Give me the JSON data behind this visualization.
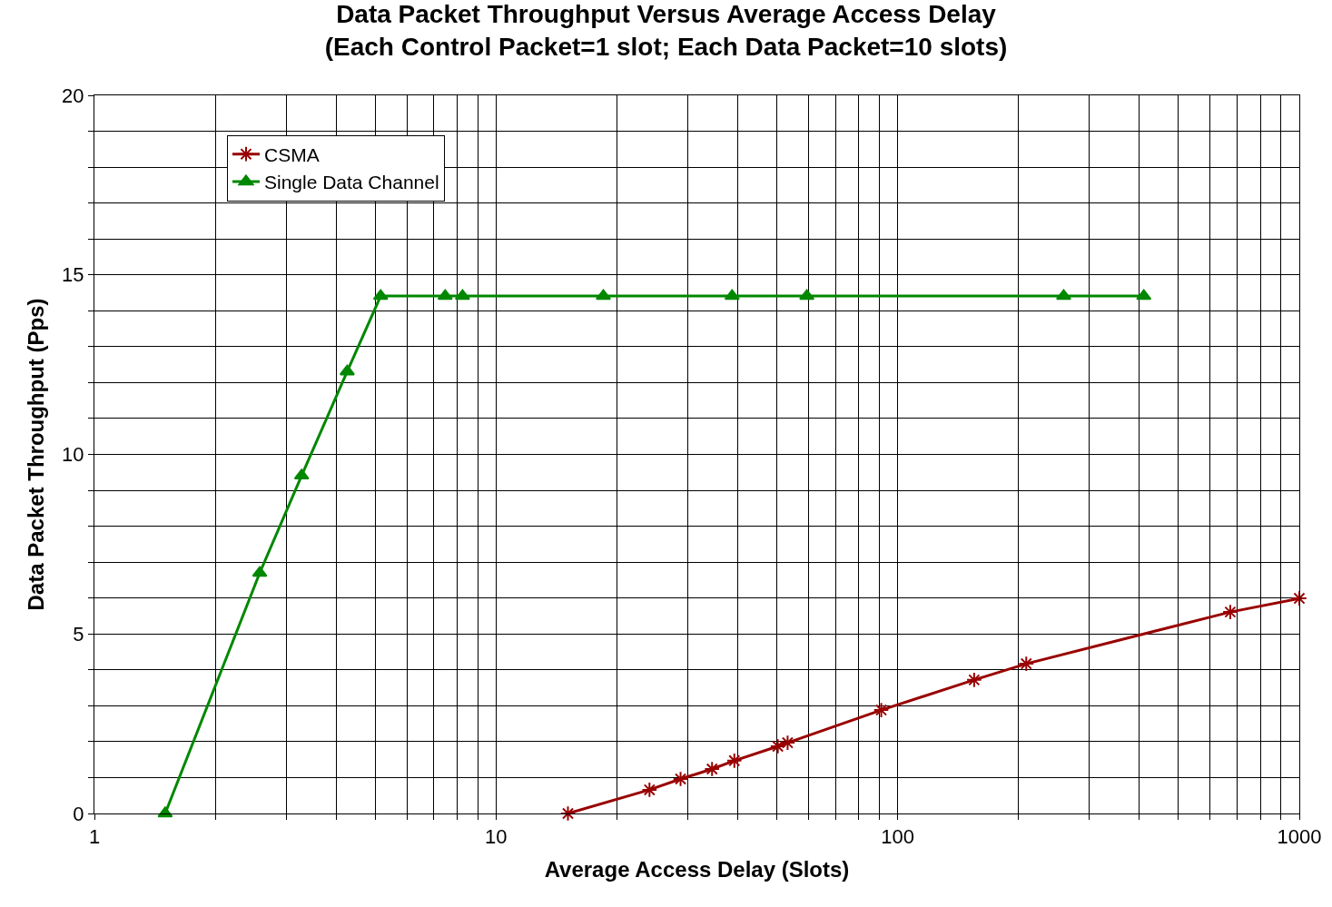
{
  "chart_data": {
    "type": "line",
    "title": "Data Packet Throughput Versus Average Access Delay\n(Each Control Packet=1 slot; Each Data Packet=10 slots)",
    "xlabel": "Average Access Delay (Slots)",
    "ylabel": "Data Packet Throughput (Pps)",
    "log": "x",
    "grid": true,
    "legend": "top left",
    "line_style": "solid",
    "xlim": [
      1,
      1000
    ],
    "ylim": [
      0,
      20
    ],
    "xticks": [
      1,
      {
        "value": 2,
        "label": null
      },
      {
        "value": 3,
        "label": null
      },
      {
        "value": 4,
        "label": null
      },
      {
        "value": 5,
        "label": null
      },
      {
        "value": 6,
        "label": null
      },
      {
        "value": 7,
        "label": null
      },
      {
        "value": 8,
        "label": null
      },
      {
        "value": 9,
        "label": null
      },
      10,
      {
        "value": 20,
        "label": null
      },
      {
        "value": 30,
        "label": null
      },
      {
        "value": 40,
        "label": null
      },
      {
        "value": 50,
        "label": null
      },
      {
        "value": 60,
        "label": null
      },
      {
        "value": 70,
        "label": null
      },
      {
        "value": 80,
        "label": null
      },
      {
        "value": 90,
        "label": null
      },
      100,
      {
        "value": 200,
        "label": null
      },
      {
        "value": 300,
        "label": null
      },
      {
        "value": 400,
        "label": null
      },
      {
        "value": 500,
        "label": null
      },
      {
        "value": 600,
        "label": null
      },
      {
        "value": 700,
        "label": null
      },
      {
        "value": 800,
        "label": null
      },
      {
        "value": 900,
        "label": null
      },
      1000
    ],
    "yticks": [
      0,
      {
        "value": 1,
        "label": null
      },
      {
        "value": 2,
        "label": null
      },
      {
        "value": 3,
        "label": null
      },
      {
        "value": 4,
        "label": null
      },
      5,
      {
        "value": 6,
        "label": null
      },
      {
        "value": 7,
        "label": null
      },
      {
        "value": 8,
        "label": null
      },
      {
        "value": 9,
        "label": null
      },
      10,
      {
        "value": 11,
        "label": null
      },
      {
        "value": 12,
        "label": null
      },
      {
        "value": 13,
        "label": null
      },
      {
        "value": 14,
        "label": null
      },
      15,
      {
        "value": 16,
        "label": null
      },
      {
        "value": 17,
        "label": null
      },
      {
        "value": 18,
        "label": null
      },
      {
        "value": 19,
        "label": null
      },
      20
    ],
    "series": [
      {
        "name": "CSMA",
        "color": "#990000",
        "marker": "cross",
        "x": [
          15.1,
          24.1,
          28.8,
          34.5,
          39.2,
          50.3,
          53.2,
          91.0,
          155,
          209,
          673,
          1000
        ],
        "values": [
          0,
          0.66,
          0.96,
          1.24,
          1.47,
          1.87,
          1.97,
          2.88,
          3.72,
          4.17,
          5.61,
          5.99
        ]
      },
      {
        "name": "Single Data Channel",
        "color": "#008800",
        "marker": "triangle",
        "x": [
          1.5,
          2.58,
          3.28,
          4.26,
          5.16,
          7.47,
          8.25,
          18.5,
          38.7,
          59.4,
          259,
          410
        ],
        "values": [
          0,
          6.7,
          9.41,
          12.31,
          14.41,
          14.41,
          14.41,
          14.41,
          14.41,
          14.41,
          14.41,
          14.41
        ]
      }
    ]
  }
}
